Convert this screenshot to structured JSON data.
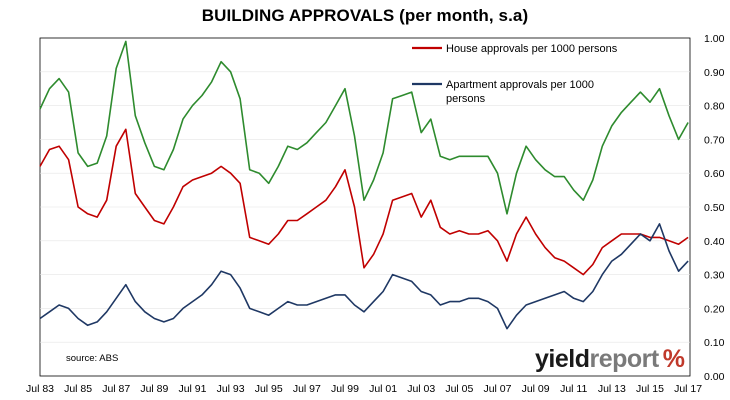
{
  "title": "BUILDING APPROVALS (per month, s.a)",
  "source": "source: ABS",
  "logo": {
    "yield": "yield",
    "report": "report",
    "pct": "%"
  },
  "colors": {
    "house": "#c00000",
    "apartment": "#1f3864",
    "third": "#2e8b2e"
  },
  "chart_data": {
    "type": "line",
    "title": "BUILDING APPROVALS (per month, s.a)",
    "xlabel": "",
    "ylabel": "",
    "xlim": [
      1983.5,
      2017.6
    ],
    "ylim": [
      0.0,
      1.0
    ],
    "yticks": [
      "0.00",
      "0.10",
      "0.20",
      "0.30",
      "0.40",
      "0.50",
      "0.60",
      "0.70",
      "0.80",
      "0.90",
      "1.00"
    ],
    "xticks": [
      "Jul 83",
      "Jul 85",
      "Jul 87",
      "Jul 89",
      "Jul 91",
      "Jul 93",
      "Jul 95",
      "Jul 97",
      "Jul 99",
      "Jul 01",
      "Jul 03",
      "Jul 05",
      "Jul 07",
      "Jul 09",
      "Jul 11",
      "Jul 13",
      "Jul 15",
      "Jul 17"
    ],
    "legend_position": "top-right",
    "series": [
      {
        "name": "House approvals per 1000 persons",
        "color": "#c00000",
        "x": [
          1983.5,
          1984.0,
          1984.5,
          1985.0,
          1985.5,
          1986.0,
          1986.5,
          1987.0,
          1987.5,
          1988.0,
          1988.5,
          1989.0,
          1989.5,
          1990.0,
          1990.5,
          1991.0,
          1991.5,
          1992.0,
          1992.5,
          1993.0,
          1993.5,
          1994.0,
          1994.5,
          1995.0,
          1995.5,
          1996.0,
          1996.5,
          1997.0,
          1997.5,
          1998.0,
          1998.5,
          1999.0,
          1999.5,
          2000.0,
          2000.5,
          2001.0,
          2001.5,
          2002.0,
          2002.5,
          2003.0,
          2003.5,
          2004.0,
          2004.5,
          2005.0,
          2005.5,
          2006.0,
          2006.5,
          2007.0,
          2007.5,
          2008.0,
          2008.5,
          2009.0,
          2009.5,
          2010.0,
          2010.5,
          2011.0,
          2011.5,
          2012.0,
          2012.5,
          2013.0,
          2013.5,
          2014.0,
          2014.5,
          2015.0,
          2015.5,
          2016.0,
          2016.5,
          2017.0,
          2017.5
        ],
        "values": [
          0.62,
          0.67,
          0.68,
          0.64,
          0.5,
          0.48,
          0.47,
          0.52,
          0.68,
          0.73,
          0.54,
          0.5,
          0.46,
          0.45,
          0.5,
          0.56,
          0.58,
          0.59,
          0.6,
          0.62,
          0.6,
          0.57,
          0.41,
          0.4,
          0.39,
          0.42,
          0.46,
          0.46,
          0.48,
          0.5,
          0.52,
          0.56,
          0.61,
          0.5,
          0.32,
          0.36,
          0.42,
          0.52,
          0.53,
          0.54,
          0.47,
          0.52,
          0.44,
          0.42,
          0.43,
          0.42,
          0.42,
          0.43,
          0.4,
          0.34,
          0.42,
          0.47,
          0.42,
          0.38,
          0.35,
          0.34,
          0.32,
          0.3,
          0.33,
          0.38,
          0.4,
          0.42,
          0.42,
          0.42,
          0.41,
          0.41,
          0.4,
          0.39,
          0.41
        ]
      },
      {
        "name": "Apartment approvals per 1000 persons",
        "color": "#1f3864",
        "x": [
          1983.5,
          1984.0,
          1984.5,
          1985.0,
          1985.5,
          1986.0,
          1986.5,
          1987.0,
          1987.5,
          1988.0,
          1988.5,
          1989.0,
          1989.5,
          1990.0,
          1990.5,
          1991.0,
          1991.5,
          1992.0,
          1992.5,
          1993.0,
          1993.5,
          1994.0,
          1994.5,
          1995.0,
          1995.5,
          1996.0,
          1996.5,
          1997.0,
          1997.5,
          1998.0,
          1998.5,
          1999.0,
          1999.5,
          2000.0,
          2000.5,
          2001.0,
          2001.5,
          2002.0,
          2002.5,
          2003.0,
          2003.5,
          2004.0,
          2004.5,
          2005.0,
          2005.5,
          2006.0,
          2006.5,
          2007.0,
          2007.5,
          2008.0,
          2008.5,
          2009.0,
          2009.5,
          2010.0,
          2010.5,
          2011.0,
          2011.5,
          2012.0,
          2012.5,
          2013.0,
          2013.5,
          2014.0,
          2014.5,
          2015.0,
          2015.5,
          2016.0,
          2016.5,
          2017.0,
          2017.5
        ],
        "values": [
          0.17,
          0.19,
          0.21,
          0.2,
          0.17,
          0.15,
          0.16,
          0.19,
          0.23,
          0.27,
          0.22,
          0.19,
          0.17,
          0.16,
          0.17,
          0.2,
          0.22,
          0.24,
          0.27,
          0.31,
          0.3,
          0.26,
          0.2,
          0.19,
          0.18,
          0.2,
          0.22,
          0.21,
          0.21,
          0.22,
          0.23,
          0.24,
          0.24,
          0.21,
          0.19,
          0.22,
          0.25,
          0.3,
          0.29,
          0.28,
          0.25,
          0.24,
          0.21,
          0.22,
          0.22,
          0.23,
          0.23,
          0.22,
          0.2,
          0.14,
          0.18,
          0.21,
          0.22,
          0.23,
          0.24,
          0.25,
          0.23,
          0.22,
          0.25,
          0.3,
          0.34,
          0.36,
          0.39,
          0.42,
          0.4,
          0.45,
          0.37,
          0.31,
          0.34
        ]
      },
      {
        "color": "#2e8b2e",
        "x": [
          1983.5,
          1984.0,
          1984.5,
          1985.0,
          1985.5,
          1986.0,
          1986.5,
          1987.0,
          1987.5,
          1988.0,
          1988.5,
          1989.0,
          1989.5,
          1990.0,
          1990.5,
          1991.0,
          1991.5,
          1992.0,
          1992.5,
          1993.0,
          1993.5,
          1994.0,
          1994.5,
          1995.0,
          1995.5,
          1996.0,
          1996.5,
          1997.0,
          1997.5,
          1998.0,
          1998.5,
          1999.0,
          1999.5,
          2000.0,
          2000.5,
          2001.0,
          2001.5,
          2002.0,
          2002.5,
          2003.0,
          2003.5,
          2004.0,
          2004.5,
          2005.0,
          2005.5,
          2006.0,
          2006.5,
          2007.0,
          2007.5,
          2008.0,
          2008.5,
          2009.0,
          2009.5,
          2010.0,
          2010.5,
          2011.0,
          2011.5,
          2012.0,
          2012.5,
          2013.0,
          2013.5,
          2014.0,
          2014.5,
          2015.0,
          2015.5,
          2016.0,
          2016.5,
          2017.0,
          2017.5
        ],
        "values": [
          0.79,
          0.85,
          0.88,
          0.84,
          0.66,
          0.62,
          0.63,
          0.71,
          0.91,
          0.99,
          0.77,
          0.69,
          0.62,
          0.61,
          0.67,
          0.76,
          0.8,
          0.83,
          0.87,
          0.93,
          0.9,
          0.82,
          0.61,
          0.6,
          0.57,
          0.62,
          0.68,
          0.67,
          0.69,
          0.72,
          0.75,
          0.8,
          0.85,
          0.71,
          0.52,
          0.58,
          0.66,
          0.82,
          0.83,
          0.84,
          0.72,
          0.76,
          0.65,
          0.64,
          0.65,
          0.65,
          0.65,
          0.65,
          0.6,
          0.48,
          0.6,
          0.68,
          0.64,
          0.61,
          0.59,
          0.59,
          0.55,
          0.52,
          0.58,
          0.68,
          0.74,
          0.78,
          0.81,
          0.84,
          0.81,
          0.85,
          0.77,
          0.7,
          0.75
        ]
      }
    ]
  }
}
